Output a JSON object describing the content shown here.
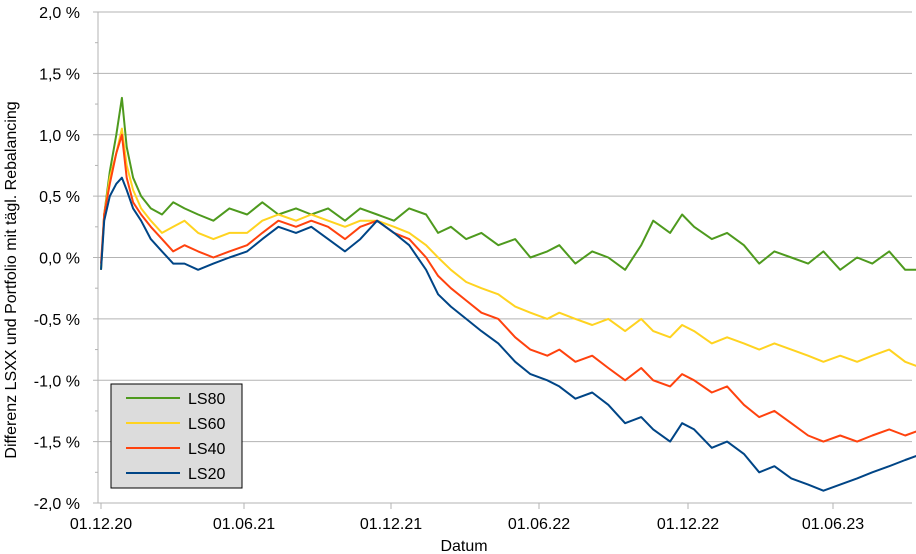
{
  "chart_data": {
    "type": "line",
    "title": "",
    "xlabel": "Datum",
    "ylabel": "Differenz LSXX und Portfolio mit tägl. Rebalancing",
    "y_ticks": [
      "2,0 %",
      "1,5 %",
      "1,0 %",
      "0,5 %",
      "0,0 %",
      "-0,5 %",
      "-1,0 %",
      "-1,5 %",
      "-2,0 %"
    ],
    "x_ticks": [
      "01.12.20",
      "01.06.21",
      "01.12.21",
      "01.06.22",
      "01.12.22",
      "01.06.23"
    ],
    "x_tick_dates": [
      "2020-12-01",
      "2021-06-01",
      "2021-12-01",
      "2022-06-01",
      "2022-12-01",
      "2023-06-01"
    ],
    "xlim": [
      "2020-12-01",
      "2023-09-20"
    ],
    "ylim": [
      -2.0,
      2.0
    ],
    "grid": "horizontal",
    "legend": "bottom-left",
    "series": [
      {
        "name": "LS80",
        "color": "#4e9a1e",
        "points": [
          [
            "2020-12-01",
            -0.1
          ],
          [
            "2020-12-05",
            0.35
          ],
          [
            "2020-12-12",
            0.7
          ],
          [
            "2020-12-20",
            1.0
          ],
          [
            "2020-12-27",
            1.3
          ],
          [
            "2021-01-02",
            0.9
          ],
          [
            "2021-01-10",
            0.65
          ],
          [
            "2021-01-20",
            0.5
          ],
          [
            "2021-02-01",
            0.4
          ],
          [
            "2021-02-15",
            0.35
          ],
          [
            "2021-03-01",
            0.45
          ],
          [
            "2021-03-15",
            0.4
          ],
          [
            "2021-04-01",
            0.35
          ],
          [
            "2021-04-20",
            0.3
          ],
          [
            "2021-05-10",
            0.4
          ],
          [
            "2021-06-01",
            0.35
          ],
          [
            "2021-06-20",
            0.45
          ],
          [
            "2021-07-10",
            0.35
          ],
          [
            "2021-08-01",
            0.4
          ],
          [
            "2021-08-20",
            0.35
          ],
          [
            "2021-09-10",
            0.4
          ],
          [
            "2021-10-01",
            0.3
          ],
          [
            "2021-10-20",
            0.4
          ],
          [
            "2021-11-10",
            0.35
          ],
          [
            "2021-12-01",
            0.3
          ],
          [
            "2021-12-20",
            0.4
          ],
          [
            "2022-01-10",
            0.35
          ],
          [
            "2022-01-25",
            0.2
          ],
          [
            "2022-02-10",
            0.25
          ],
          [
            "2022-03-01",
            0.15
          ],
          [
            "2022-03-20",
            0.2
          ],
          [
            "2022-04-10",
            0.1
          ],
          [
            "2022-05-01",
            0.15
          ],
          [
            "2022-05-20",
            0.0
          ],
          [
            "2022-06-10",
            0.05
          ],
          [
            "2022-06-25",
            0.1
          ],
          [
            "2022-07-15",
            -0.05
          ],
          [
            "2022-08-05",
            0.05
          ],
          [
            "2022-08-25",
            0.0
          ],
          [
            "2022-09-15",
            -0.1
          ],
          [
            "2022-10-05",
            0.1
          ],
          [
            "2022-10-20",
            0.3
          ],
          [
            "2022-11-10",
            0.2
          ],
          [
            "2022-11-25",
            0.35
          ],
          [
            "2022-12-10",
            0.25
          ],
          [
            "2023-01-01",
            0.15
          ],
          [
            "2023-01-20",
            0.2
          ],
          [
            "2023-02-10",
            0.1
          ],
          [
            "2023-03-01",
            -0.05
          ],
          [
            "2023-03-20",
            0.05
          ],
          [
            "2023-04-10",
            0.0
          ],
          [
            "2023-05-01",
            -0.05
          ],
          [
            "2023-05-20",
            0.05
          ],
          [
            "2023-06-10",
            -0.1
          ],
          [
            "2023-07-01",
            0.0
          ],
          [
            "2023-07-20",
            -0.05
          ],
          [
            "2023-08-10",
            0.05
          ],
          [
            "2023-08-30",
            -0.1
          ],
          [
            "2023-09-20",
            -0.1
          ]
        ]
      },
      {
        "name": "LS60",
        "color": "#ffd320",
        "points": [
          [
            "2020-12-01",
            -0.1
          ],
          [
            "2020-12-05",
            0.35
          ],
          [
            "2020-12-12",
            0.65
          ],
          [
            "2020-12-20",
            0.85
          ],
          [
            "2020-12-27",
            1.05
          ],
          [
            "2021-01-02",
            0.75
          ],
          [
            "2021-01-10",
            0.55
          ],
          [
            "2021-01-20",
            0.4
          ],
          [
            "2021-02-01",
            0.3
          ],
          [
            "2021-02-15",
            0.2
          ],
          [
            "2021-03-01",
            0.25
          ],
          [
            "2021-03-15",
            0.3
          ],
          [
            "2021-04-01",
            0.2
          ],
          [
            "2021-04-20",
            0.15
          ],
          [
            "2021-05-10",
            0.2
          ],
          [
            "2021-06-01",
            0.2
          ],
          [
            "2021-06-20",
            0.3
          ],
          [
            "2021-07-10",
            0.35
          ],
          [
            "2021-08-01",
            0.3
          ],
          [
            "2021-08-20",
            0.35
          ],
          [
            "2021-09-10",
            0.3
          ],
          [
            "2021-10-01",
            0.25
          ],
          [
            "2021-10-20",
            0.3
          ],
          [
            "2021-11-10",
            0.3
          ],
          [
            "2021-12-01",
            0.25
          ],
          [
            "2021-12-20",
            0.2
          ],
          [
            "2022-01-10",
            0.1
          ],
          [
            "2022-01-25",
            0.0
          ],
          [
            "2022-02-10",
            -0.1
          ],
          [
            "2022-03-01",
            -0.2
          ],
          [
            "2022-03-20",
            -0.25
          ],
          [
            "2022-04-10",
            -0.3
          ],
          [
            "2022-05-01",
            -0.4
          ],
          [
            "2022-05-20",
            -0.45
          ],
          [
            "2022-06-10",
            -0.5
          ],
          [
            "2022-06-25",
            -0.45
          ],
          [
            "2022-07-15",
            -0.5
          ],
          [
            "2022-08-05",
            -0.55
          ],
          [
            "2022-08-25",
            -0.5
          ],
          [
            "2022-09-15",
            -0.6
          ],
          [
            "2022-10-05",
            -0.5
          ],
          [
            "2022-10-20",
            -0.6
          ],
          [
            "2022-11-10",
            -0.65
          ],
          [
            "2022-11-25",
            -0.55
          ],
          [
            "2022-12-10",
            -0.6
          ],
          [
            "2023-01-01",
            -0.7
          ],
          [
            "2023-01-20",
            -0.65
          ],
          [
            "2023-02-10",
            -0.7
          ],
          [
            "2023-03-01",
            -0.75
          ],
          [
            "2023-03-20",
            -0.7
          ],
          [
            "2023-04-10",
            -0.75
          ],
          [
            "2023-05-01",
            -0.8
          ],
          [
            "2023-05-20",
            -0.85
          ],
          [
            "2023-06-10",
            -0.8
          ],
          [
            "2023-07-01",
            -0.85
          ],
          [
            "2023-07-20",
            -0.8
          ],
          [
            "2023-08-10",
            -0.75
          ],
          [
            "2023-08-30",
            -0.85
          ],
          [
            "2023-09-20",
            -0.9
          ]
        ]
      },
      {
        "name": "LS40",
        "color": "#ff420e",
        "points": [
          [
            "2020-12-01",
            -0.05
          ],
          [
            "2020-12-05",
            0.35
          ],
          [
            "2020-12-12",
            0.6
          ],
          [
            "2020-12-20",
            0.85
          ],
          [
            "2020-12-27",
            1.0
          ],
          [
            "2021-01-02",
            0.65
          ],
          [
            "2021-01-10",
            0.45
          ],
          [
            "2021-01-20",
            0.35
          ],
          [
            "2021-02-01",
            0.25
          ],
          [
            "2021-02-15",
            0.15
          ],
          [
            "2021-03-01",
            0.05
          ],
          [
            "2021-03-15",
            0.1
          ],
          [
            "2021-04-01",
            0.05
          ],
          [
            "2021-04-20",
            0.0
          ],
          [
            "2021-05-10",
            0.05
          ],
          [
            "2021-06-01",
            0.1
          ],
          [
            "2021-06-20",
            0.2
          ],
          [
            "2021-07-10",
            0.3
          ],
          [
            "2021-08-01",
            0.25
          ],
          [
            "2021-08-20",
            0.3
          ],
          [
            "2021-09-10",
            0.25
          ],
          [
            "2021-10-01",
            0.15
          ],
          [
            "2021-10-20",
            0.25
          ],
          [
            "2021-11-10",
            0.3
          ],
          [
            "2021-12-01",
            0.2
          ],
          [
            "2021-12-20",
            0.15
          ],
          [
            "2022-01-10",
            0.0
          ],
          [
            "2022-01-25",
            -0.15
          ],
          [
            "2022-02-10",
            -0.25
          ],
          [
            "2022-03-01",
            -0.35
          ],
          [
            "2022-03-20",
            -0.45
          ],
          [
            "2022-04-10",
            -0.5
          ],
          [
            "2022-05-01",
            -0.65
          ],
          [
            "2022-05-20",
            -0.75
          ],
          [
            "2022-06-10",
            -0.8
          ],
          [
            "2022-06-25",
            -0.75
          ],
          [
            "2022-07-15",
            -0.85
          ],
          [
            "2022-08-05",
            -0.8
          ],
          [
            "2022-08-25",
            -0.9
          ],
          [
            "2022-09-15",
            -1.0
          ],
          [
            "2022-10-05",
            -0.9
          ],
          [
            "2022-10-20",
            -1.0
          ],
          [
            "2022-11-10",
            -1.05
          ],
          [
            "2022-11-25",
            -0.95
          ],
          [
            "2022-12-10",
            -1.0
          ],
          [
            "2023-01-01",
            -1.1
          ],
          [
            "2023-01-20",
            -1.05
          ],
          [
            "2023-02-10",
            -1.2
          ],
          [
            "2023-03-01",
            -1.3
          ],
          [
            "2023-03-20",
            -1.25
          ],
          [
            "2023-04-10",
            -1.35
          ],
          [
            "2023-05-01",
            -1.45
          ],
          [
            "2023-05-20",
            -1.5
          ],
          [
            "2023-06-10",
            -1.45
          ],
          [
            "2023-07-01",
            -1.5
          ],
          [
            "2023-07-20",
            -1.45
          ],
          [
            "2023-08-10",
            -1.4
          ],
          [
            "2023-08-30",
            -1.45
          ],
          [
            "2023-09-20",
            -1.4
          ]
        ]
      },
      {
        "name": "LS20",
        "color": "#004586",
        "points": [
          [
            "2020-12-01",
            -0.1
          ],
          [
            "2020-12-05",
            0.3
          ],
          [
            "2020-12-12",
            0.5
          ],
          [
            "2020-12-20",
            0.6
          ],
          [
            "2020-12-27",
            0.65
          ],
          [
            "2021-01-02",
            0.55
          ],
          [
            "2021-01-10",
            0.4
          ],
          [
            "2021-01-20",
            0.3
          ],
          [
            "2021-02-01",
            0.15
          ],
          [
            "2021-02-15",
            0.05
          ],
          [
            "2021-03-01",
            -0.05
          ],
          [
            "2021-03-15",
            -0.05
          ],
          [
            "2021-04-01",
            -0.1
          ],
          [
            "2021-04-20",
            -0.05
          ],
          [
            "2021-05-10",
            0.0
          ],
          [
            "2021-06-01",
            0.05
          ],
          [
            "2021-06-20",
            0.15
          ],
          [
            "2021-07-10",
            0.25
          ],
          [
            "2021-08-01",
            0.2
          ],
          [
            "2021-08-20",
            0.25
          ],
          [
            "2021-09-10",
            0.15
          ],
          [
            "2021-10-01",
            0.05
          ],
          [
            "2021-10-20",
            0.15
          ],
          [
            "2021-11-10",
            0.3
          ],
          [
            "2021-12-01",
            0.2
          ],
          [
            "2021-12-20",
            0.1
          ],
          [
            "2022-01-10",
            -0.1
          ],
          [
            "2022-01-25",
            -0.3
          ],
          [
            "2022-02-10",
            -0.4
          ],
          [
            "2022-03-01",
            -0.5
          ],
          [
            "2022-03-20",
            -0.6
          ],
          [
            "2022-04-10",
            -0.7
          ],
          [
            "2022-05-01",
            -0.85
          ],
          [
            "2022-05-20",
            -0.95
          ],
          [
            "2022-06-10",
            -1.0
          ],
          [
            "2022-06-25",
            -1.05
          ],
          [
            "2022-07-15",
            -1.15
          ],
          [
            "2022-08-05",
            -1.1
          ],
          [
            "2022-08-25",
            -1.2
          ],
          [
            "2022-09-15",
            -1.35
          ],
          [
            "2022-10-05",
            -1.3
          ],
          [
            "2022-10-20",
            -1.4
          ],
          [
            "2022-11-10",
            -1.5
          ],
          [
            "2022-11-25",
            -1.35
          ],
          [
            "2022-12-10",
            -1.4
          ],
          [
            "2023-01-01",
            -1.55
          ],
          [
            "2023-01-20",
            -1.5
          ],
          [
            "2023-02-10",
            -1.6
          ],
          [
            "2023-03-01",
            -1.75
          ],
          [
            "2023-03-20",
            -1.7
          ],
          [
            "2023-04-10",
            -1.8
          ],
          [
            "2023-05-01",
            -1.85
          ],
          [
            "2023-05-20",
            -1.9
          ],
          [
            "2023-06-10",
            -1.85
          ],
          [
            "2023-07-01",
            -1.8
          ],
          [
            "2023-07-20",
            -1.75
          ],
          [
            "2023-08-10",
            -1.7
          ],
          [
            "2023-08-30",
            -1.65
          ],
          [
            "2023-09-20",
            -1.6
          ]
        ]
      }
    ]
  }
}
